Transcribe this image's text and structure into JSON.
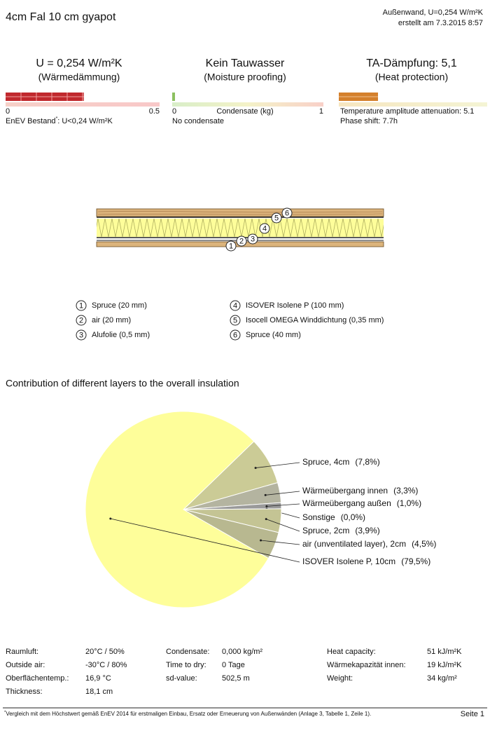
{
  "header": {
    "title": "4cm Fal 10 cm gyapot",
    "info": "Außenwand, U=0,254 W/m²K",
    "date": "erstellt am 7.3.2015 8:57"
  },
  "ratings": [
    {
      "title": "U = 0,254 W/m²K",
      "subtitle": "(Wärmedämmung)",
      "scale": [
        0,
        0.5
      ],
      "value": 0.254,
      "note": "EnEV Bestand",
      "note_sup": "*",
      "note_rest": ": U<0,24 W/m²K"
    },
    {
      "title": "Kein Tauwasser",
      "subtitle": "(Moisture proofing)",
      "scale": [
        0,
        1
      ],
      "value": 0,
      "axis_label": "Condensate (kg)",
      "note": "No condensate"
    },
    {
      "title": "TA-Dämpfung: 5,1",
      "subtitle": "(Heat protection)",
      "note": "Temperature amplitude attenuation: 5.1",
      "note2": "Phase shift: 7.7h"
    }
  ],
  "layers": [
    {
      "number": "1",
      "label": "Spruce (20 mm)"
    },
    {
      "number": "2",
      "label": "air (20 mm)"
    },
    {
      "number": "3",
      "label": "Alufolie (0,5 mm)"
    },
    {
      "number": "4",
      "label": "ISOVER Isolene P (100 mm)"
    },
    {
      "number": "5",
      "label": "Isocell OMEGA Winddichtung (0,35 mm)"
    },
    {
      "number": "6",
      "label": "Spruce (40 mm)"
    }
  ],
  "chart_data": {
    "type": "pie",
    "title": "Contribution of different layers to the overall insulation",
    "categories": [
      "Spruce, 4cm",
      "Wärmeübergang innen",
      "Wärmeübergang außen",
      "Sonstige",
      "Spruce, 2cm",
      "air (unventilated layer), 2cm",
      "ISOVER Isolene P, 10cm"
    ],
    "values": [
      7.8,
      3.3,
      1.0,
      0.0,
      3.9,
      4.5,
      79.5
    ],
    "value_labels": [
      "(7,8%)",
      "(3,3%)",
      "(1,0%)",
      "(0,0%)",
      "(3,9%)",
      "(4,5%)",
      "(79,5%)"
    ],
    "colors": [
      "#cbcb96",
      "#b4b4a0",
      "#9a9a9a",
      "#a8a890",
      "#c4c494",
      "#b8b890",
      "#fefe9a"
    ]
  },
  "stats": [
    [
      {
        "label": "Raumluft:",
        "value": "20°C / 50%"
      },
      {
        "label": "Outside air:",
        "value": "-30°C / 80%"
      },
      {
        "label": "Oberflächentemp.:",
        "value": "16,9 °C"
      },
      {
        "label": "Thickness:",
        "value": "18,1 cm"
      }
    ],
    [
      {
        "label": "Condensate:",
        "value": "0,000 kg/m²"
      },
      {
        "label": "Time to dry:",
        "value": "0 Tage"
      },
      {
        "label": "sd-value:",
        "value": "502,5 m"
      }
    ],
    [
      {
        "label": "Heat capacity:",
        "value": "51 kJ/m²K"
      },
      {
        "label": "Wärmekapazität innen:",
        "value": "19 kJ/m²K"
      },
      {
        "label": "Weight:",
        "value": "34 kg/m²"
      }
    ]
  ],
  "footer": {
    "sup": "*",
    "note": "Vergleich mit dem Höchstwert gemäß EnEV 2014 für erstmaligen Einbau, Ersatz oder Erneuerung von Außenwänden (Anlage 3, Tabelle 1, Zeile 1).",
    "page": "Seite 1"
  }
}
